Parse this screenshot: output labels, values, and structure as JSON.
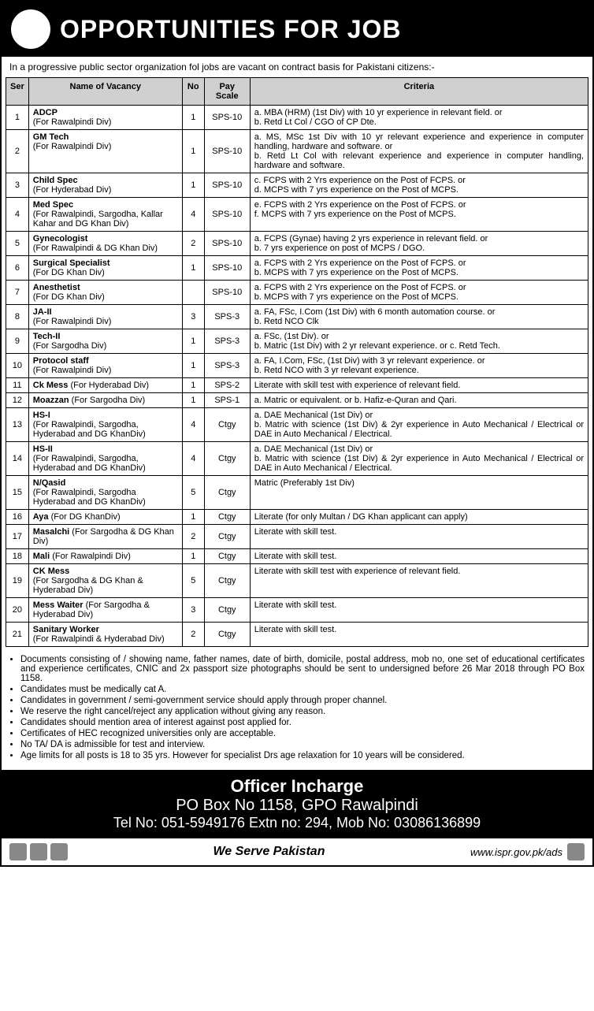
{
  "header": {
    "title": "OPPORTUNITIES FOR JOB"
  },
  "intro": "In a progressive public sector organization fol jobs are vacant on contract basis for Pakistani citizens:-",
  "columns": {
    "ser": "Ser",
    "name": "Name of Vacancy",
    "no": "No",
    "pay": "Pay Scale",
    "criteria": "Criteria"
  },
  "vacancies": [
    {
      "ser": "1",
      "name": "ADCP",
      "sub": "(For Rawalpindi Div)",
      "no": "1",
      "pay": "SPS-10",
      "criteria": "a. MBA (HRM) (1st Div) with 10 yr experience in relevant field. or\nb. Retd Lt Col / CGO of CP Dte."
    },
    {
      "ser": "2",
      "name": "GM Tech",
      "sub": "(For Rawalpindi Div)",
      "no": "1",
      "pay": "SPS-10",
      "criteria": "a. MS, MSc 1st Div with 10 yr relevant experience and experience in computer handling, hardware and software. or\nb. Retd Lt Col with relevant experience and experience in computer handling, hardware and software."
    },
    {
      "ser": "3",
      "name": "Child Spec",
      "sub": "(For Hyderabad Div)",
      "no": "1",
      "pay": "SPS-10",
      "criteria": "c. FCPS with 2 Yrs experience on the Post of FCPS. or\nd. MCPS with 7 yrs experience on the Post of MCPS."
    },
    {
      "ser": "4",
      "name": "Med Spec",
      "sub": "(For Rawalpindi, Sargodha, Kallar Kahar and DG Khan Div)",
      "no": "4",
      "pay": "SPS-10",
      "criteria": "e. FCPS with 2 Yrs experience on the Post of FCPS. or\nf. MCPS with 7 yrs experience on the Post of MCPS."
    },
    {
      "ser": "5",
      "name": "Gynecologist",
      "sub": "(For Rawalpindi & DG Khan Div)",
      "no": "2",
      "pay": "SPS-10",
      "criteria": "a. FCPS (Gynae) having 2 yrs experience in relevant field. or\nb. 7 yrs experience on post of MCPS / DGO."
    },
    {
      "ser": "6",
      "name": "Surgical Specialist",
      "sub": "(For DG Khan Div)",
      "no": "1",
      "pay": "SPS-10",
      "criteria": "a. FCPS with 2 Yrs experience on the Post of FCPS. or\nb. MCPS with 7 yrs experience on the Post of MCPS."
    },
    {
      "ser": "7",
      "name": "Anesthetist",
      "sub": "(For DG Khan Div)",
      "no": "",
      "pay": "SPS-10",
      "criteria": "a. FCPS with 2 Yrs experience on the Post of FCPS. or\nb. MCPS with 7 yrs experience on the Post of MCPS."
    },
    {
      "ser": "8",
      "name": "JA-II",
      "sub": "(For Rawalpindi Div)",
      "no": "3",
      "pay": "SPS-3",
      "criteria": "a. FA, FSc, I.Com (1st Div) with 6 month automation course. or\nb. Retd NCO Clk"
    },
    {
      "ser": "9",
      "name": "Tech-II",
      "sub": "(For Sargodha Div)",
      "no": "1",
      "pay": "SPS-3",
      "criteria": "a. FSc, (1st Div). or\nb. Matric (1st Div) with 2 yr relevant experience. or   c. Retd Tech."
    },
    {
      "ser": "10",
      "name": "Protocol staff",
      "sub": "(For Rawalpindi Div)",
      "no": "1",
      "pay": "SPS-3",
      "criteria": "a. FA, I.Com, FSc, (1st Div) with 3 yr relevant experience. or\nb. Retd NCO with 3 yr relevant experience."
    },
    {
      "ser": "11",
      "name": "Ck Mess",
      "sub": "(For Hyderabad Div)",
      "inline": true,
      "no": "1",
      "pay": "SPS-2",
      "criteria": "Literate with skill test with experience of relevant field."
    },
    {
      "ser": "12",
      "name": "Moazzan",
      "sub": "(For Sargodha Div)",
      "inline": true,
      "no": "1",
      "pay": "SPS-1",
      "criteria": "a. Matric or equivalent. or    b.   Hafiz-e-Quran and Qari."
    },
    {
      "ser": "13",
      "name": "HS-I",
      "sub": "(For Rawalpindi, Sargodha, Hyderabad and DG KhanDiv)",
      "no": "4",
      "pay": "Ctgy",
      "criteria": "a. DAE Mechanical (1st Div) or\nb. Matric with science (1st Div) & 2yr experience in Auto Mechanical / Electrical or DAE in Auto Mechanical / Electrical."
    },
    {
      "ser": "14",
      "name": "HS-II",
      "sub": "(For Rawalpindi, Sargodha, Hyderabad and DG KhanDiv)",
      "no": "4",
      "pay": "Ctgy",
      "criteria": "a. DAE Mechanical (1st Div) or\nb. Matric with science (1st Div) & 2yr experience in Auto Mechanical / Electrical or DAE in Auto Mechanical / Electrical."
    },
    {
      "ser": "15",
      "name": "N/Qasid",
      "sub": "(For Rawalpindi, Sargodha Hyderabad and DG KhanDiv)",
      "no": "5",
      "pay": "Ctgy",
      "criteria": "Matric (Preferably 1st Div)"
    },
    {
      "ser": "16",
      "name": "Aya",
      "sub": "(For DG KhanDiv)",
      "inline": true,
      "no": "1",
      "pay": "Ctgy",
      "criteria": "Literate (for only Multan / DG Khan applicant can apply)"
    },
    {
      "ser": "17",
      "name": "Masalchi",
      "sub": "(For Sargodha & DG Khan Div)",
      "inline": true,
      "no": "2",
      "pay": "Ctgy",
      "criteria": "Literate with skill test."
    },
    {
      "ser": "18",
      "name": "Mali",
      "sub": "(For Rawalpindi Div)",
      "inline": true,
      "no": "1",
      "pay": "Ctgy",
      "criteria": "Literate with skill test."
    },
    {
      "ser": "19",
      "name": "CK Mess",
      "sub": "(For Sargodha & DG Khan & Hyderabad Div)",
      "no": "5",
      "pay": "Ctgy",
      "criteria": "Literate with skill test with experience of relevant field."
    },
    {
      "ser": "20",
      "name": "Mess Waiter",
      "sub": "(For Sargodha & Hyderabad Div)",
      "inline": true,
      "no": "3",
      "pay": "Ctgy",
      "criteria": "Literate with skill test."
    },
    {
      "ser": "21",
      "name": "Sanitary Worker",
      "sub": "(For Rawalpindi & Hyderabad Div)",
      "no": "2",
      "pay": "Ctgy",
      "criteria": "Literate with skill test."
    }
  ],
  "notes": [
    "Documents consisting of / showing name, father names, date of birth, domicile, postal address, mob no, one set of educational certificates and experience certificates, CNIC and 2x passport size photographs should be sent to undersigned before 26 Mar 2018 through PO Box 1158.",
    "Candidates must be medically cat A.",
    "Candidates in government / semi-government service should apply through proper channel.",
    "We reserve the right cancel/reject any application without giving any reason.",
    "Candidates should mention area of interest against post applied for.",
    "Certificates of HEC recognized universities only are acceptable.",
    "No TA/ DA is admissible for test and interview.",
    "Age limits for all posts is 18 to 35 yrs. However for specialist Drs age relaxation for 10 years will be considered."
  ],
  "contact": {
    "officer": "Officer Incharge",
    "pobox": "PO Box No 1158, GPO Rawalpindi",
    "tel": "Tel No: 051-5949176 Extn no: 294, Mob No: 03086136899"
  },
  "footer": {
    "slogan": "We Serve Pakistan",
    "url": "www.ispr.gov.pk/ads"
  }
}
